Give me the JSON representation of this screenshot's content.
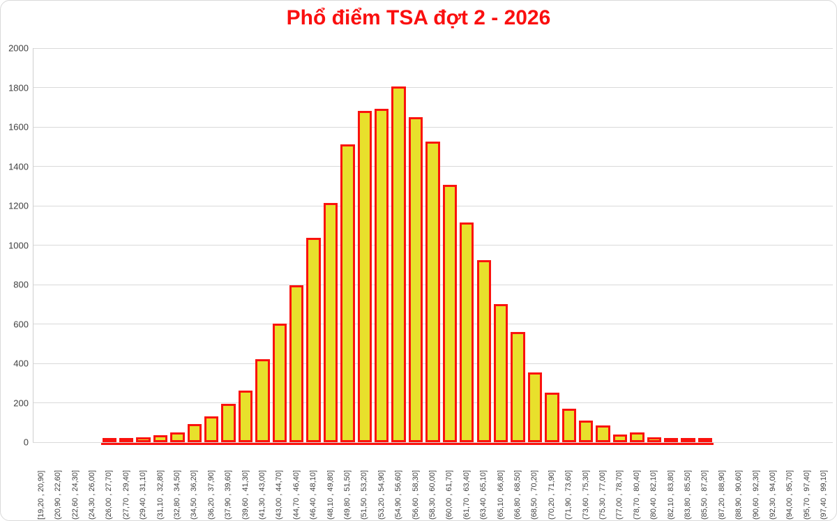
{
  "chart_data": {
    "type": "bar",
    "title": "Phổ điểm TSA đợt 2 - 2026",
    "xlabel": "",
    "ylabel": "",
    "ylim": [
      0,
      2000
    ],
    "ytick_step": 200,
    "grid": true,
    "legend": "none",
    "categories": [
      "[19,20 , 20,90]",
      "(20,90 , 22,60]",
      "(22,60 , 24,30]",
      "(24,30 , 26,00]",
      "(26,00 , 27,70]",
      "(27,70 , 29,40]",
      "(29,40 , 31,10]",
      "(31,10 , 32,80]",
      "(32,80 , 34,50]",
      "(34,50 , 36,20]",
      "(36,20 , 37,90]",
      "(37,90 , 39,60]",
      "(39,60 , 41,30]",
      "(41,30 , 43,00]",
      "(43,00 , 44,70]",
      "(44,70 , 46,40]",
      "(46,40 , 48,10]",
      "(48,10 , 49,80]",
      "(49,80 , 51,50]",
      "(51,50 , 53,20]",
      "(53,20 , 54,90]",
      "(54,90 , 56,60]",
      "(56,60 , 58,30]",
      "(58,30 , 60,00]",
      "(60,00 , 61,70]",
      "(61,70 , 63,40]",
      "(63,40 , 65,10]",
      "(65,10 , 66,80]",
      "(66,80 , 68,50]",
      "(68,50 , 70,20]",
      "(70,20 , 71,90]",
      "(71,90 , 73,60]",
      "(73,60 , 75,30]",
      "(75,30 , 77,00]",
      "(77,00 , 78,70]",
      "(78,70 , 80,40]",
      "(80,40 , 82,10]",
      "(82,10 , 83,80]",
      "(83,80 , 85,50]",
      "(85,50 , 87,20]",
      "(87,20 , 88,90]",
      "(88,90 , 90,60]",
      "(90,60 , 92,30]",
      "(92,30 , 94,00]",
      "(94,00 , 95,70]",
      "(95,70 , 97,40]",
      "(97,40 , 99,10]"
    ],
    "values": [
      0,
      0,
      0,
      0,
      5,
      8,
      15,
      25,
      40,
      80,
      120,
      185,
      250,
      410,
      590,
      785,
      1025,
      1205,
      1500,
      1670,
      1680,
      1795,
      1640,
      1515,
      1295,
      1105,
      915,
      690,
      550,
      345,
      240,
      160,
      100,
      75,
      30,
      40,
      15,
      12,
      8,
      5,
      0,
      0,
      0,
      0,
      0,
      0,
      0
    ],
    "colors": {
      "bar_fill": "#E8E02C",
      "bar_border": "#FA120E",
      "title": "#FA0F0F",
      "gridline": "#D9D9D9",
      "axis_text": "#404040"
    }
  }
}
